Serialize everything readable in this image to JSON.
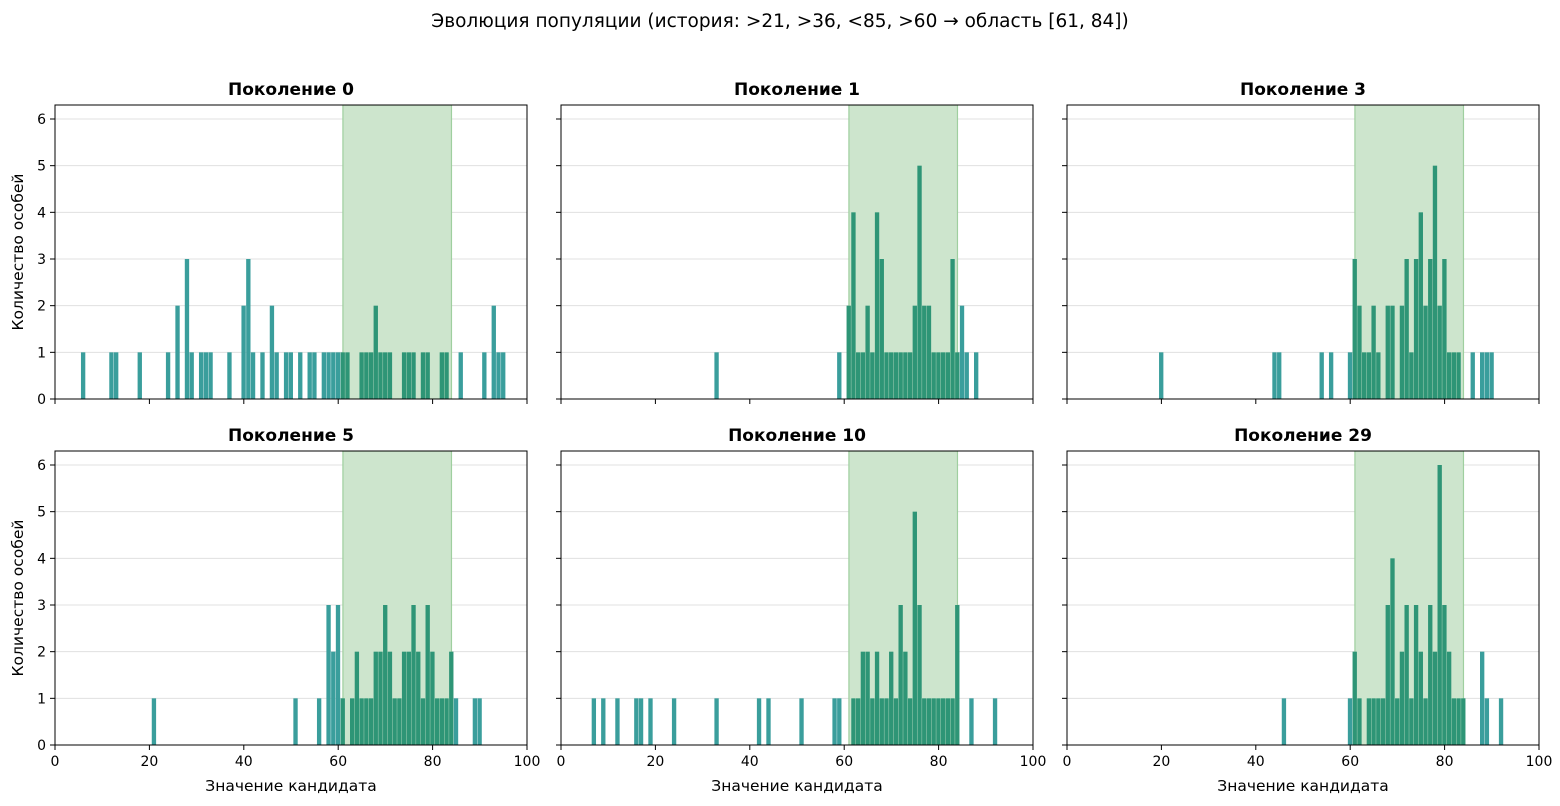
{
  "figure": {
    "suptitle": "Эволюция популяции (история: >21, >36, <85, >60 → область [61, 84])",
    "colors": {
      "in_region": "#2e9576",
      "out_region": "#3a9e9c",
      "region_fill": "#cde5cd",
      "region_edge": "#9fcf9f",
      "grid": "#e0e0e0"
    }
  },
  "chart_data": [
    {
      "type": "bar",
      "title": "Поколение 0",
      "xlabel": "",
      "ylabel": "Количество особей",
      "xlim": [
        0,
        100
      ],
      "ylim": [
        0,
        6.3
      ],
      "xticks": [
        0,
        20,
        40,
        60,
        80,
        100
      ],
      "yticks": [
        0,
        1,
        2,
        3,
        4,
        5,
        6
      ],
      "grid": "y",
      "shaded_region": [
        61,
        84
      ],
      "bins": [
        [
          6,
          1
        ],
        [
          12,
          1
        ],
        [
          13,
          1
        ],
        [
          18,
          1
        ],
        [
          24,
          1
        ],
        [
          26,
          2
        ],
        [
          28,
          3
        ],
        [
          29,
          1
        ],
        [
          31,
          1
        ],
        [
          32,
          1
        ],
        [
          33,
          1
        ],
        [
          37,
          1
        ],
        [
          40,
          2
        ],
        [
          41,
          3
        ],
        [
          42,
          1
        ],
        [
          44,
          1
        ],
        [
          46,
          2
        ],
        [
          47,
          1
        ],
        [
          49,
          1
        ],
        [
          50,
          1
        ],
        [
          52,
          1
        ],
        [
          54,
          1
        ],
        [
          55,
          1
        ],
        [
          57,
          1
        ],
        [
          58,
          1
        ],
        [
          59,
          1
        ],
        [
          60,
          1
        ],
        [
          61,
          1
        ],
        [
          62,
          1
        ],
        [
          65,
          1
        ],
        [
          66,
          1
        ],
        [
          67,
          1
        ],
        [
          68,
          2
        ],
        [
          69,
          1
        ],
        [
          70,
          1
        ],
        [
          71,
          1
        ],
        [
          74,
          1
        ],
        [
          75,
          1
        ],
        [
          76,
          1
        ],
        [
          78,
          1
        ],
        [
          79,
          1
        ],
        [
          82,
          1
        ],
        [
          83,
          1
        ],
        [
          86,
          1
        ],
        [
          91,
          1
        ],
        [
          93,
          2
        ],
        [
          94,
          1
        ],
        [
          95,
          1
        ]
      ]
    },
    {
      "type": "bar",
      "title": "Поколение 1",
      "xlabel": "",
      "ylabel": "",
      "xlim": [
        0,
        100
      ],
      "ylim": [
        0,
        6.3
      ],
      "xticks": [
        0,
        20,
        40,
        60,
        80,
        100
      ],
      "yticks": [
        0,
        1,
        2,
        3,
        4,
        5,
        6
      ],
      "grid": "y",
      "shaded_region": [
        61,
        84
      ],
      "bins": [
        [
          33,
          1
        ],
        [
          59,
          1
        ],
        [
          61,
          2
        ],
        [
          62,
          4
        ],
        [
          63,
          1
        ],
        [
          64,
          1
        ],
        [
          65,
          2
        ],
        [
          66,
          1
        ],
        [
          67,
          4
        ],
        [
          68,
          3
        ],
        [
          69,
          1
        ],
        [
          70,
          1
        ],
        [
          71,
          1
        ],
        [
          72,
          1
        ],
        [
          73,
          1
        ],
        [
          74,
          1
        ],
        [
          75,
          2
        ],
        [
          76,
          5
        ],
        [
          77,
          2
        ],
        [
          78,
          2
        ],
        [
          79,
          1
        ],
        [
          80,
          1
        ],
        [
          81,
          1
        ],
        [
          82,
          1
        ],
        [
          83,
          3
        ],
        [
          84,
          1
        ],
        [
          85,
          2
        ],
        [
          86,
          1
        ],
        [
          88,
          1
        ]
      ]
    },
    {
      "type": "bar",
      "title": "Поколение 3",
      "xlabel": "",
      "ylabel": "",
      "xlim": [
        0,
        100
      ],
      "ylim": [
        0,
        6.3
      ],
      "xticks": [
        0,
        20,
        40,
        60,
        80,
        100
      ],
      "yticks": [
        0,
        1,
        2,
        3,
        4,
        5,
        6
      ],
      "grid": "y",
      "shaded_region": [
        61,
        84
      ],
      "bins": [
        [
          20,
          1
        ],
        [
          44,
          1
        ],
        [
          45,
          1
        ],
        [
          54,
          1
        ],
        [
          56,
          1
        ],
        [
          60,
          1
        ],
        [
          61,
          3
        ],
        [
          62,
          2
        ],
        [
          63,
          1
        ],
        [
          64,
          1
        ],
        [
          65,
          2
        ],
        [
          66,
          1
        ],
        [
          68,
          2
        ],
        [
          69,
          2
        ],
        [
          71,
          2
        ],
        [
          72,
          3
        ],
        [
          73,
          1
        ],
        [
          74,
          3
        ],
        [
          75,
          4
        ],
        [
          76,
          2
        ],
        [
          77,
          3
        ],
        [
          78,
          5
        ],
        [
          79,
          2
        ],
        [
          80,
          3
        ],
        [
          81,
          1
        ],
        [
          82,
          1
        ],
        [
          83,
          1
        ],
        [
          86,
          1
        ],
        [
          88,
          1
        ],
        [
          89,
          1
        ],
        [
          90,
          1
        ]
      ]
    },
    {
      "type": "bar",
      "title": "Поколение 5",
      "xlabel": "Значение кандидата",
      "ylabel": "Количество особей",
      "xlim": [
        0,
        100
      ],
      "ylim": [
        0,
        6.3
      ],
      "xticks": [
        0,
        20,
        40,
        60,
        80,
        100
      ],
      "yticks": [
        0,
        1,
        2,
        3,
        4,
        5,
        6
      ],
      "grid": "y",
      "shaded_region": [
        61,
        84
      ],
      "bins": [
        [
          21,
          1
        ],
        [
          51,
          1
        ],
        [
          56,
          1
        ],
        [
          58,
          3
        ],
        [
          59,
          2
        ],
        [
          60,
          3
        ],
        [
          61,
          1
        ],
        [
          63,
          1
        ],
        [
          64,
          2
        ],
        [
          65,
          1
        ],
        [
          66,
          1
        ],
        [
          67,
          1
        ],
        [
          68,
          2
        ],
        [
          69,
          2
        ],
        [
          70,
          3
        ],
        [
          71,
          2
        ],
        [
          72,
          1
        ],
        [
          73,
          1
        ],
        [
          74,
          2
        ],
        [
          75,
          2
        ],
        [
          76,
          3
        ],
        [
          77,
          2
        ],
        [
          78,
          1
        ],
        [
          79,
          3
        ],
        [
          80,
          2
        ],
        [
          81,
          1
        ],
        [
          82,
          1
        ],
        [
          83,
          1
        ],
        [
          84,
          2
        ],
        [
          85,
          1
        ],
        [
          89,
          1
        ],
        [
          90,
          1
        ]
      ]
    },
    {
      "type": "bar",
      "title": "Поколение 10",
      "xlabel": "Значение кандидата",
      "ylabel": "",
      "xlim": [
        0,
        100
      ],
      "ylim": [
        0,
        6.3
      ],
      "xticks": [
        0,
        20,
        40,
        60,
        80,
        100
      ],
      "yticks": [
        0,
        1,
        2,
        3,
        4,
        5,
        6
      ],
      "grid": "y",
      "shaded_region": [
        61,
        84
      ],
      "bins": [
        [
          7,
          1
        ],
        [
          9,
          1
        ],
        [
          12,
          1
        ],
        [
          16,
          1
        ],
        [
          17,
          1
        ],
        [
          19,
          1
        ],
        [
          24,
          1
        ],
        [
          33,
          1
        ],
        [
          42,
          1
        ],
        [
          44,
          1
        ],
        [
          51,
          1
        ],
        [
          58,
          1
        ],
        [
          59,
          1
        ],
        [
          62,
          1
        ],
        [
          63,
          1
        ],
        [
          64,
          2
        ],
        [
          65,
          2
        ],
        [
          66,
          1
        ],
        [
          67,
          2
        ],
        [
          68,
          1
        ],
        [
          69,
          1
        ],
        [
          70,
          2
        ],
        [
          71,
          1
        ],
        [
          72,
          3
        ],
        [
          73,
          2
        ],
        [
          74,
          1
        ],
        [
          75,
          5
        ],
        [
          76,
          3
        ],
        [
          77,
          1
        ],
        [
          78,
          1
        ],
        [
          79,
          1
        ],
        [
          80,
          1
        ],
        [
          81,
          1
        ],
        [
          82,
          1
        ],
        [
          83,
          1
        ],
        [
          84,
          3
        ],
        [
          87,
          1
        ],
        [
          92,
          1
        ]
      ]
    },
    {
      "type": "bar",
      "title": "Поколение 29",
      "xlabel": "Значение кандидата",
      "ylabel": "",
      "xlim": [
        0,
        100
      ],
      "ylim": [
        0,
        6.3
      ],
      "xticks": [
        0,
        20,
        40,
        60,
        80,
        100
      ],
      "yticks": [
        0,
        1,
        2,
        3,
        4,
        5,
        6
      ],
      "grid": "y",
      "shaded_region": [
        61,
        84
      ],
      "bins": [
        [
          46,
          1
        ],
        [
          60,
          1
        ],
        [
          61,
          2
        ],
        [
          62,
          1
        ],
        [
          64,
          1
        ],
        [
          65,
          1
        ],
        [
          66,
          1
        ],
        [
          67,
          1
        ],
        [
          68,
          3
        ],
        [
          69,
          4
        ],
        [
          70,
          1
        ],
        [
          71,
          2
        ],
        [
          72,
          3
        ],
        [
          73,
          1
        ],
        [
          74,
          3
        ],
        [
          75,
          2
        ],
        [
          76,
          1
        ],
        [
          77,
          3
        ],
        [
          78,
          2
        ],
        [
          79,
          6
        ],
        [
          80,
          3
        ],
        [
          81,
          2
        ],
        [
          82,
          1
        ],
        [
          83,
          1
        ],
        [
          84,
          1
        ],
        [
          88,
          2
        ],
        [
          89,
          1
        ],
        [
          92,
          1
        ]
      ]
    }
  ]
}
